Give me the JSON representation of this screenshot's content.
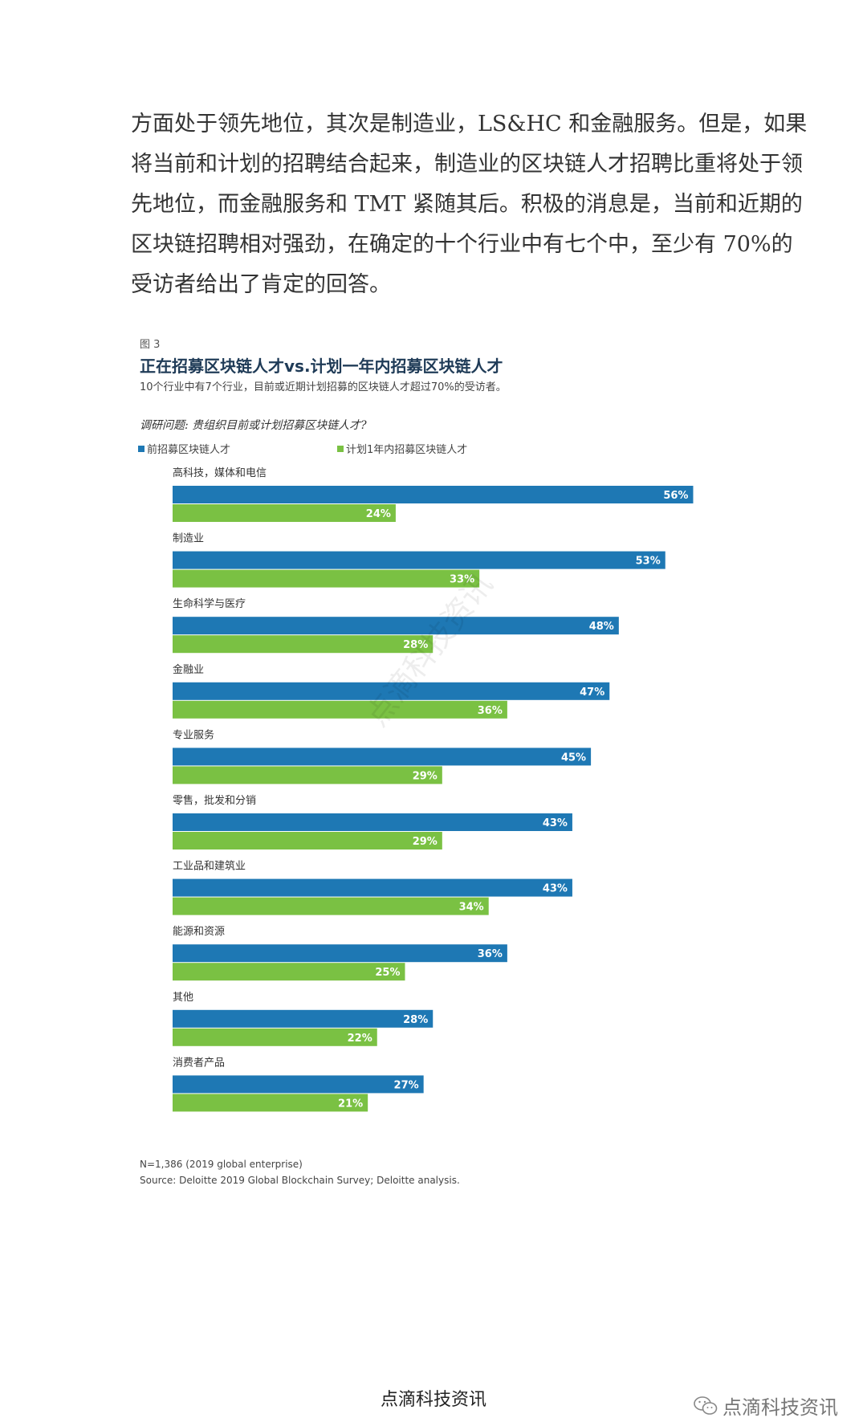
{
  "paragraph": {
    "lines": [
      "方面处于领先地位，其次是制造业，LS&HC 和金融服务。但是，如果",
      "将当前和计划的招聘结合起来，制造业的区块链人才招聘比重将处于领",
      "先地位，而金融服务和 TMT 紧随其后。积极的消息是，当前和近期的",
      "区块链招聘相对强劲，在确定的十个行业中有七个中，至少有 70%的",
      "受访者给出了肯定的回答。"
    ]
  },
  "figure": {
    "label": "图 3",
    "title": "正在招募区块链人才vs.计划一年内招募区块链人才",
    "subtitle": "10个行业中有7个行业，目前或近期计划招募的区块链人才超过70%的受访者。",
    "question": "调研问题: 贵组织目前或计划招募区块链人才?",
    "note_n": "N=1,386 (2019 global enterprise)",
    "note_source": "Source: Deloitte 2019 Global Blockchain Survey; Deloitte analysis."
  },
  "colors": {
    "current": "#1e78b4",
    "planned": "#7ac143"
  },
  "chart_data": {
    "type": "bar",
    "orientation": "horizontal",
    "categories": [
      "高科技，媒体和电信",
      "制造业",
      "生命科学与医疗",
      "金融业",
      "专业服务",
      "零售，批发和分销",
      "工业品和建筑业",
      "能源和资源",
      "其他",
      "消费者产品"
    ],
    "series": [
      {
        "name": "前招募区块链人才",
        "values": [
          56,
          53,
          48,
          47,
          45,
          43,
          43,
          36,
          28,
          27
        ],
        "labels": [
          "56%",
          "53%",
          "48%",
          "47%",
          "45%",
          "43%",
          "43%",
          "36%",
          "28%",
          "27%"
        ]
      },
      {
        "name": "计划1年内招募区块链人才",
        "values": [
          24,
          33,
          28,
          36,
          29,
          29,
          34,
          25,
          22,
          21
        ],
        "labels": [
          "24%",
          "33%",
          "28%",
          "36%",
          "29%",
          "29%",
          "34%",
          "25%",
          "22%",
          "21%"
        ]
      }
    ],
    "legend": "top-left",
    "grid": false
  },
  "watermark": "点滴科技资讯",
  "footer": {
    "center": "点滴科技资讯",
    "right": "点滴科技资讯",
    "right_icon": "wechat-icon"
  }
}
